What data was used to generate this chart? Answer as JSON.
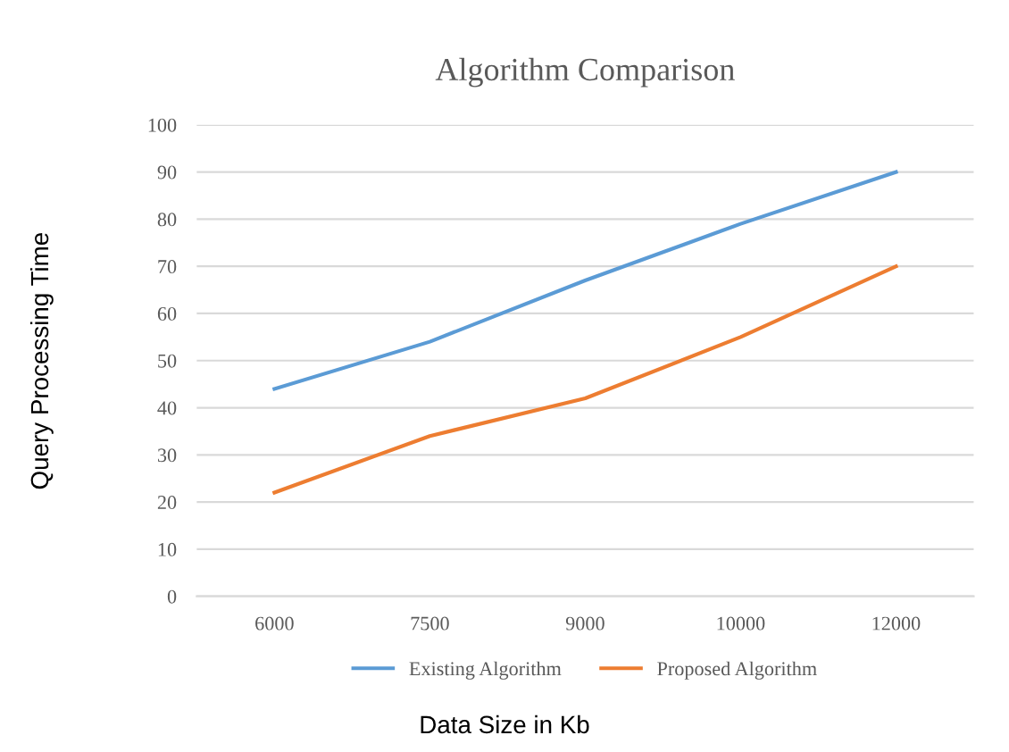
{
  "chart_data": {
    "type": "line",
    "title": "Algorithm Comparison",
    "xlabel": "Data Size in Kb",
    "ylabel": "Query Processing Time",
    "categories": [
      "6000",
      "7500",
      "9000",
      "10000",
      "12000"
    ],
    "series": [
      {
        "name": "Existing Algorithm",
        "color": "#5b9bd5",
        "values": [
          44,
          54,
          67,
          79,
          90
        ]
      },
      {
        "name": "Proposed Algorithm",
        "color": "#ed7d31",
        "values": [
          22,
          34,
          42,
          55,
          70
        ]
      }
    ],
    "ylim": [
      0,
      100
    ],
    "yticks": [
      0,
      10,
      20,
      30,
      40,
      50,
      60,
      70,
      80,
      90,
      100
    ],
    "grid": "y",
    "legend": "bottom",
    "marker": "none",
    "line_style": "solid"
  }
}
